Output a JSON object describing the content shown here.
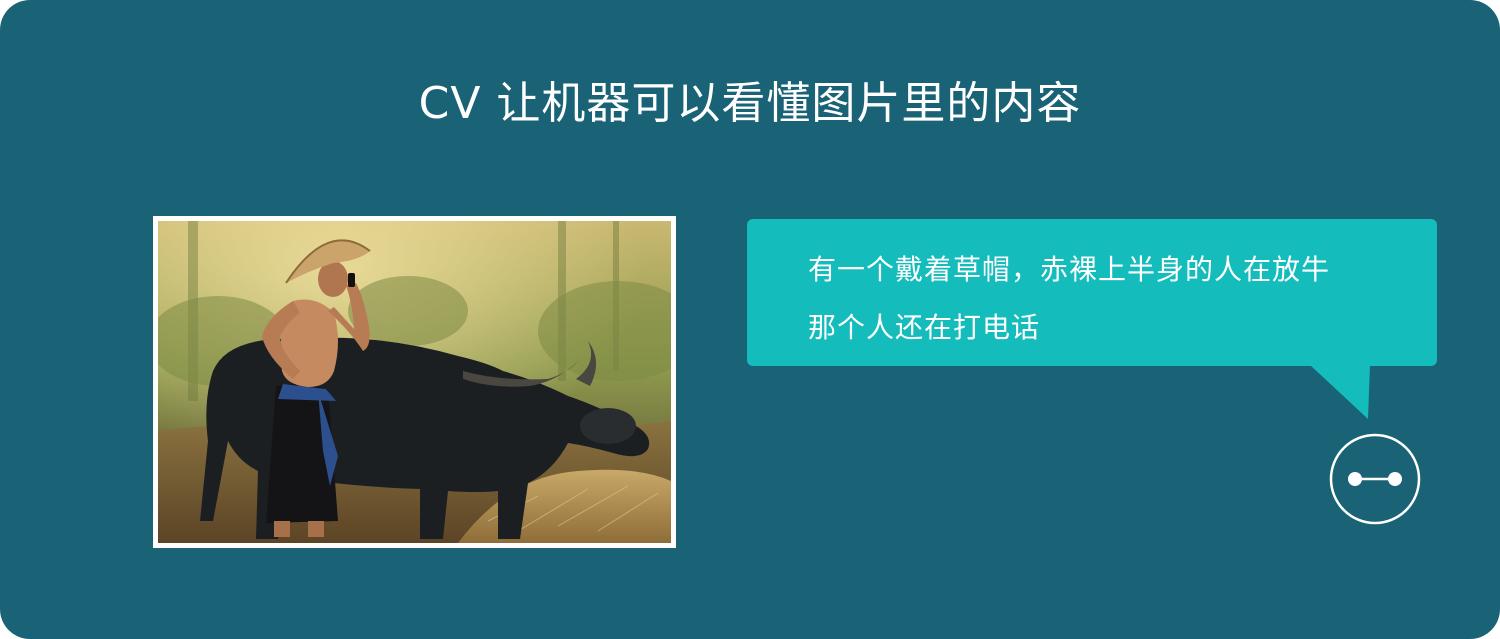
{
  "header": {
    "title": "CV 让机器可以看懂图片里的内容"
  },
  "photo": {
    "subject": "man in straw hat on phone standing beside water buffalo"
  },
  "caption_bubble": {
    "lines": [
      "有一个戴着草帽，赤裸上半身的人在放牛",
      "那个人还在打电话"
    ]
  },
  "icons": {
    "robot": "robot-face-icon"
  },
  "colors": {
    "background": "#1a6276",
    "bubble": "#14bcbc",
    "text": "#ffffff"
  }
}
